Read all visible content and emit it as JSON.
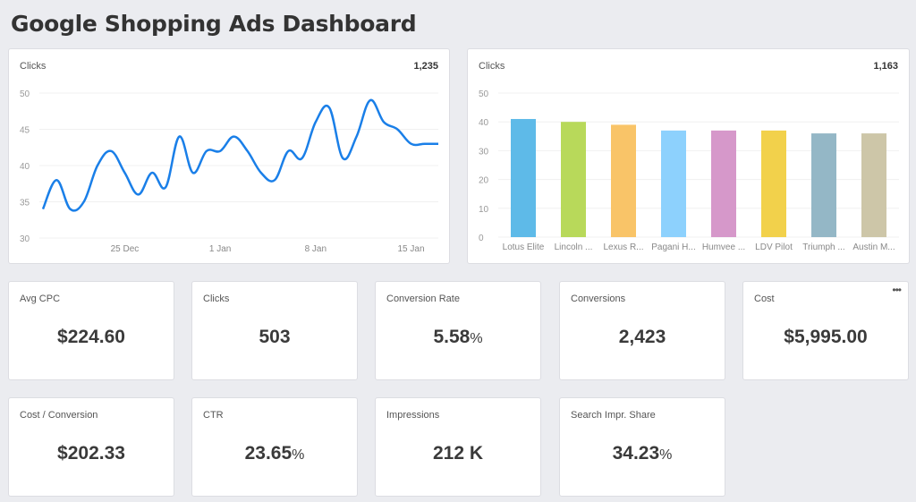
{
  "title": "Google Shopping Ads Dashboard",
  "line_card": {
    "title": "Clicks",
    "total": "1,235"
  },
  "bar_card": {
    "title": "Clicks",
    "total": "1,163"
  },
  "chart_data": [
    {
      "type": "line",
      "title": "Clicks",
      "x": [
        "2023-12-19",
        "2023-12-20",
        "2023-12-21",
        "2023-12-22",
        "2023-12-23",
        "2023-12-24",
        "2023-12-25",
        "2023-12-26",
        "2023-12-27",
        "2023-12-28",
        "2023-12-29",
        "2023-12-30",
        "2023-12-31",
        "2024-01-01",
        "2024-01-02",
        "2024-01-03",
        "2024-01-04",
        "2024-01-05",
        "2024-01-06",
        "2024-01-07",
        "2024-01-08",
        "2024-01-09",
        "2024-01-10",
        "2024-01-11",
        "2024-01-12",
        "2024-01-13",
        "2024-01-14",
        "2024-01-15",
        "2024-01-16",
        "2024-01-17"
      ],
      "values": [
        34,
        38,
        34,
        35,
        40,
        42,
        39,
        36,
        39,
        37,
        44,
        39,
        42,
        42,
        44,
        42,
        39,
        38,
        42,
        41,
        46,
        48,
        41,
        44,
        49,
        46,
        45,
        43,
        43,
        43
      ],
      "xticks": [
        "25 Dec",
        "1 Jan",
        "8 Jan",
        "15 Jan"
      ],
      "ylim": [
        30,
        50
      ],
      "yticks": [
        30,
        35,
        40,
        45,
        50
      ],
      "grid": true,
      "color": "#1a7fe8"
    },
    {
      "type": "bar",
      "title": "Clicks",
      "categories": [
        "Lotus Elite",
        "Lincoln ...",
        "Lexus R...",
        "Pagani H...",
        "Humvee ...",
        "LDV Pilot",
        "Triumph ...",
        "Austin M..."
      ],
      "values": [
        41,
        40,
        39,
        37,
        37,
        37,
        36,
        36
      ],
      "colors": [
        "#5ebae8",
        "#b8d95a",
        "#f9c468",
        "#8dd1fd",
        "#d698ca",
        "#f2d14b",
        "#94b7c6",
        "#cdc6a8"
      ],
      "ylim": [
        0,
        50
      ],
      "yticks": [
        0,
        10,
        20,
        30,
        40,
        50
      ],
      "grid": true
    }
  ],
  "kpis": [
    {
      "label": "Avg CPC",
      "value": "$224.60",
      "suffix": ""
    },
    {
      "label": "Clicks",
      "value": "503",
      "suffix": ""
    },
    {
      "label": "Conversion Rate",
      "value": "5.58",
      "suffix": "%"
    },
    {
      "label": "Conversions",
      "value": "2,423",
      "suffix": ""
    },
    {
      "label": "Cost",
      "value": "$5,995.00",
      "suffix": "",
      "menu": "•••"
    },
    {
      "label": "Cost / Conversion",
      "value": "$202.33",
      "suffix": ""
    },
    {
      "label": "CTR",
      "value": "23.65",
      "suffix": "%"
    },
    {
      "label": "Impressions",
      "value": "212 K",
      "suffix": ""
    },
    {
      "label": "Search Impr. Share",
      "value": "34.23",
      "suffix": "%"
    }
  ]
}
